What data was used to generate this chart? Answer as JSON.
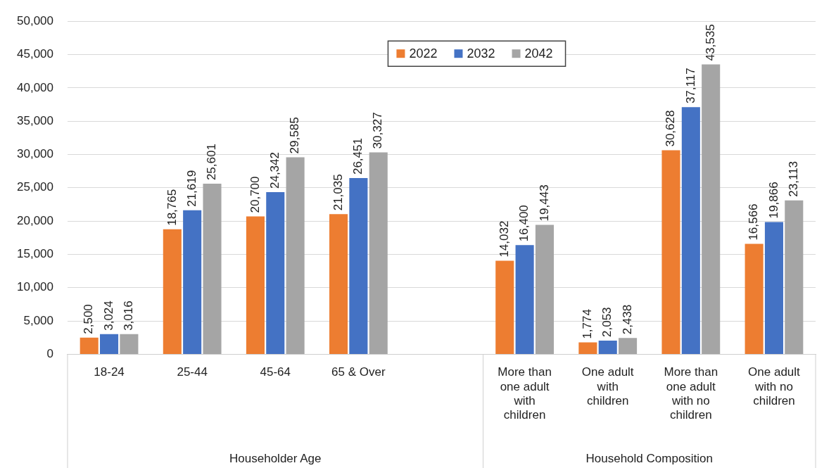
{
  "chart_data": {
    "type": "bar",
    "categories": [
      "18-24",
      "25-44",
      "45-64",
      "65 & Over",
      null,
      "More than one adult with children",
      "One adult with children",
      "More than one adult with no children",
      "One adult with no children"
    ],
    "series": [
      {
        "name": "2022",
        "color": "#ed7d31",
        "values": [
          2500,
          18765,
          20700,
          21035,
          null,
          14032,
          1774,
          30628,
          16566
        ],
        "value_labels": [
          "2,500",
          "18,765",
          "20,700",
          "21,035",
          null,
          "14,032",
          "1,774",
          "30,628",
          "16,566"
        ]
      },
      {
        "name": "2032",
        "color": "#4472c4",
        "values": [
          3024,
          21619,
          24342,
          26451,
          null,
          16400,
          2053,
          37117,
          19866
        ],
        "value_labels": [
          "3,024",
          "21,619",
          "24,342",
          "26,451",
          null,
          "16,400",
          "2,053",
          "37,117",
          "19,866"
        ]
      },
      {
        "name": "2042",
        "color": "#a5a5a5",
        "values": [
          3016,
          25601,
          29585,
          30327,
          null,
          19443,
          2438,
          43535,
          23113
        ],
        "value_labels": [
          "3,016",
          "25,601",
          "29,585",
          "30,327",
          null,
          "19,443",
          "2,438",
          "43,535",
          "23,113"
        ]
      }
    ],
    "annotations": [
      "Householder Age",
      "Household Composition"
    ],
    "ylim": [
      0,
      50000
    ],
    "yticks": [
      {
        "value": 0,
        "label": "0"
      },
      {
        "value": 5000,
        "label": "5,000"
      },
      {
        "value": 10000,
        "label": "10,000"
      },
      {
        "value": 15000,
        "label": "15,000"
      },
      {
        "value": 20000,
        "label": "20,000"
      },
      {
        "value": 25000,
        "label": "25,000"
      },
      {
        "value": 30000,
        "label": "30,000"
      },
      {
        "value": 35000,
        "label": "35,000"
      },
      {
        "value": 40000,
        "label": "40,000"
      },
      {
        "value": 45000,
        "label": "45,000"
      },
      {
        "value": 50000,
        "label": "50,000"
      }
    ],
    "grid": "y",
    "legend": "top"
  }
}
